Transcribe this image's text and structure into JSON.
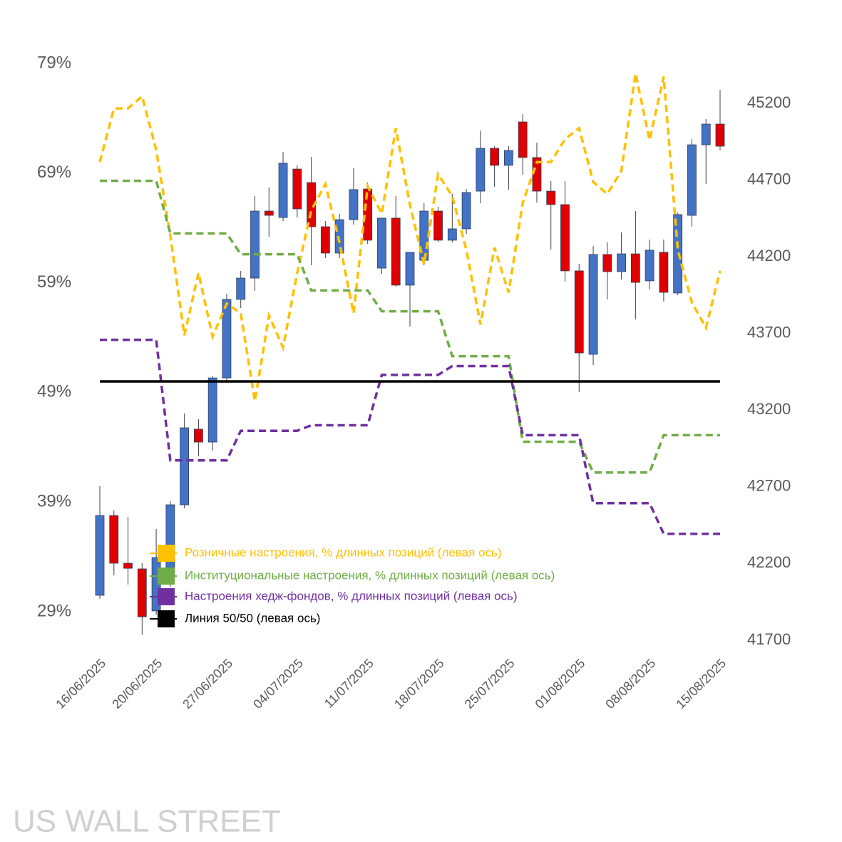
{
  "chart_data": {
    "type": "candlestick",
    "watermark": "US WALL STREET",
    "categories": [
      "16/06/2025",
      null,
      null,
      null,
      "20/06/2025",
      null,
      null,
      null,
      null,
      "27/06/2025",
      null,
      null,
      null,
      null,
      "04/07/2025",
      null,
      null,
      null,
      null,
      "11/07/2025",
      null,
      null,
      null,
      null,
      "18/07/2025",
      null,
      null,
      null,
      null,
      "25/07/2025",
      null,
      null,
      null,
      null,
      "01/08/2025",
      null,
      null,
      null,
      null,
      "08/08/2025",
      null,
      null,
      null,
      null,
      "15/08/2025"
    ],
    "candles": {
      "axis": "y2",
      "up_color": "#4472c4",
      "down_color": "#e00000",
      "open": [
        41993,
        42513,
        42202,
        42165,
        41891,
        42100,
        42583,
        43076,
        42992,
        43410,
        43922,
        44061,
        44498,
        44456,
        44772,
        44684,
        44396,
        44224,
        44442,
        44642,
        44126,
        44452,
        44015,
        44177,
        44498,
        44308,
        44382,
        44628,
        44907,
        44796,
        45079,
        44847,
        44628,
        44540,
        44108,
        43564,
        44215,
        44103,
        44219,
        44043,
        44229,
        43964,
        44470,
        44930,
        45065
      ],
      "high": [
        42704,
        42546,
        42504,
        42202,
        42425,
        42606,
        43178,
        43141,
        43424,
        43959,
        44108,
        44596,
        44652,
        44884,
        44796,
        44851,
        44433,
        44480,
        44777,
        44684,
        44452,
        44596,
        44229,
        44549,
        44526,
        44610,
        44642,
        45023,
        44921,
        44921,
        45130,
        44944,
        44693,
        44693,
        44154,
        44270,
        44294,
        44359,
        44498,
        44312,
        44312,
        44489,
        44968,
        45098,
        45288
      ],
      "low": [
        41970,
        42123,
        42063,
        41737,
        41867,
        42050,
        42560,
        42899,
        42936,
        43378,
        43866,
        43978,
        44331,
        44433,
        44456,
        44145,
        44191,
        44191,
        44410,
        44284,
        44089,
        44005,
        43745,
        44145,
        44294,
        44294,
        44349,
        44549,
        44656,
        44638,
        44735,
        44554,
        44247,
        44038,
        43318,
        43494,
        43922,
        44052,
        43792,
        43987,
        43908,
        43950,
        44396,
        44675,
        44898
      ],
      "close": [
        42513,
        42202,
        42169,
        41853,
        42239,
        42583,
        43085,
        42992,
        43410,
        43922,
        44061,
        44498,
        44470,
        44810,
        44512,
        44396,
        44224,
        44442,
        44638,
        44308,
        44452,
        44015,
        44229,
        44498,
        44308,
        44382,
        44619,
        44907,
        44796,
        44893,
        44847,
        44628,
        44540,
        44108,
        43573,
        44215,
        44103,
        44219,
        44033,
        44243,
        43968,
        44475,
        44930,
        45065,
        44921
      ]
    },
    "series": [
      {
        "name": "Розничные настроения, % длинных позиций (левая ось)",
        "color": "#ffc000",
        "dashed": true,
        "values": [
          70.0,
          74.9,
          74.9,
          76.0,
          71.1,
          63.3,
          54.2,
          59.9,
          54.1,
          57.1,
          56.2,
          48.2,
          56.0,
          53.1,
          59.9,
          65.6,
          68.0,
          62.7,
          56.2,
          67.8,
          65.3,
          73.1,
          66.1,
          60.7,
          68.9,
          66.9,
          62.0,
          55.2,
          62.2,
          58.1,
          66.3,
          70.0,
          70.0,
          72.1,
          73.1,
          68.2,
          67.1,
          69.2,
          78.1,
          72.0,
          77.8,
          62.0,
          57.2,
          54.9,
          60.1
        ]
      },
      {
        "name": "Институциональные настроения, % длинных позиций (левая ось)",
        "color": "#70ad47",
        "dashed": true,
        "values": [
          68.3,
          68.3,
          68.3,
          68.3,
          68.3,
          63.5,
          63.5,
          63.5,
          63.5,
          63.5,
          61.6,
          61.6,
          61.6,
          61.6,
          61.6,
          58.3,
          58.3,
          58.3,
          58.3,
          58.3,
          56.4,
          56.4,
          56.4,
          56.4,
          56.4,
          52.3,
          52.3,
          52.3,
          52.3,
          52.3,
          44.5,
          44.5,
          44.5,
          44.5,
          44.5,
          41.7,
          41.7,
          41.7,
          41.7,
          41.7,
          45.1,
          45.1,
          45.1,
          45.1,
          45.1
        ]
      },
      {
        "name": "Настроения хедж-фондов, % длинных позиций (левая ось)",
        "color": "#7030a0",
        "dashed": true,
        "values": [
          53.8,
          53.8,
          53.8,
          53.8,
          53.8,
          42.8,
          42.8,
          42.8,
          42.8,
          42.8,
          45.5,
          45.5,
          45.5,
          45.5,
          45.5,
          46.0,
          46.0,
          46.0,
          46.0,
          46.0,
          50.6,
          50.6,
          50.6,
          50.6,
          50.6,
          51.4,
          51.4,
          51.4,
          51.4,
          51.4,
          45.1,
          45.1,
          45.1,
          45.1,
          45.1,
          38.9,
          38.9,
          38.9,
          38.9,
          38.9,
          36.1,
          36.1,
          36.1,
          36.1,
          36.1
        ]
      },
      {
        "name": "Линия 50/50 (левая ось)",
        "color": "#000000",
        "dashed": false,
        "values": [
          50,
          50,
          50,
          50,
          50,
          50,
          50,
          50,
          50,
          50,
          50,
          50,
          50,
          50,
          50,
          50,
          50,
          50,
          50,
          50,
          50,
          50,
          50,
          50,
          50,
          50,
          50,
          50,
          50,
          50,
          50,
          50,
          50,
          50,
          50,
          50,
          50,
          50,
          50,
          50,
          50,
          50,
          50,
          50,
          50
        ]
      }
    ],
    "ylim": [
      29,
      79
    ],
    "yticks": [
      {
        "value": 29,
        "label": "29%"
      },
      {
        "value": 39,
        "label": "39%"
      },
      {
        "value": 49,
        "label": "49%"
      },
      {
        "value": 59,
        "label": "59%"
      },
      {
        "value": 69,
        "label": "69%"
      },
      {
        "value": 79,
        "label": "79%"
      }
    ],
    "y2lim": [
      41700,
      45200
    ],
    "y2ticks": [
      41700,
      42200,
      42700,
      43200,
      43700,
      44200,
      44700,
      45200
    ]
  }
}
